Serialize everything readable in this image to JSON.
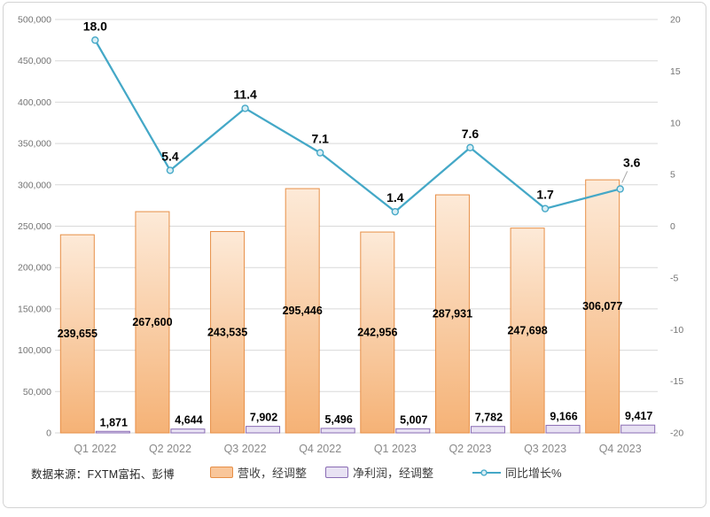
{
  "source_note": "数据来源：FXTM富拓、彭博",
  "colors": {
    "bar_revenue_border": "#E78F47",
    "bar_revenue_gradient_top": "#FDEAD8",
    "bar_revenue_gradient_bottom": "#F5B276",
    "bar_revenue_legend_fill": "#F9C69A",
    "bar_netprofit_fill": "#E8E2F3",
    "bar_netprofit_border": "#8A6CB4",
    "line_growth": "#44A8C7",
    "marker_fill": "#D9EEF5",
    "gridline": "#D9D9D9",
    "axis_text": "#737373",
    "xaxis_text": "#898989",
    "data_label": "#000000",
    "leader_line": "#A6A6A6",
    "frame_border": "#d3d3d3"
  },
  "legend": [
    {
      "label": "营收，经调整",
      "type": "bar",
      "fill": "#F9C69A",
      "border": "#E78F47"
    },
    {
      "label": "净利润，经调整",
      "type": "bar",
      "fill": "#E8E2F3",
      "border": "#8A6CB4"
    },
    {
      "label": "同比增长%",
      "type": "line",
      "stroke": "#44A8C7",
      "marker_fill": "#D9EEF5"
    }
  ],
  "chart_data": {
    "type": "bar",
    "subtype": "combo-bar-line",
    "categories": [
      "Q1 2022",
      "Q2 2022",
      "Q3 2022",
      "Q4 2022",
      "Q1 2023",
      "Q2 2023",
      "Q3 2023",
      "Q4 2023"
    ],
    "series": [
      {
        "name": "营收，经调整",
        "type": "bar",
        "axis": "left",
        "values": [
          239655,
          267600,
          243535,
          295446,
          242956,
          287931,
          247698,
          306077
        ],
        "labels": [
          "239,655",
          "267,600",
          "243,535",
          "295,446",
          "242,956",
          "287,931",
          "247,698",
          "306,077"
        ]
      },
      {
        "name": "净利润，经调整",
        "type": "bar",
        "axis": "left",
        "values": [
          1871,
          4644,
          7902,
          5496,
          5007,
          7782,
          9166,
          9417
        ],
        "labels": [
          "1,871",
          "4,644",
          "7,902",
          "5,496",
          "5,007",
          "7,782",
          "9,166",
          "9,417"
        ]
      },
      {
        "name": "同比增长%",
        "type": "line",
        "axis": "right",
        "values": [
          18.0,
          5.4,
          11.4,
          7.1,
          1.4,
          7.6,
          1.7,
          3.6
        ],
        "labels": [
          "18.0",
          "5.4",
          "11.4",
          "7.1",
          "1.4",
          "7.6",
          "1.7",
          "3.6"
        ]
      }
    ],
    "left_axis": {
      "min": 0,
      "max": 500000,
      "step": 50000,
      "tick_labels": [
        "500,000",
        "450,000",
        "400,000",
        "350,000",
        "300,000",
        "250,000",
        "200,000",
        "150,000",
        "100,000",
        "50,000",
        "0"
      ]
    },
    "right_axis": {
      "min": -20,
      "max": 20,
      "step": 5,
      "tick_labels": [
        "20",
        "15",
        "10",
        "5",
        "0",
        "-5",
        "-10",
        "-15",
        "-20"
      ]
    },
    "grid": true,
    "legend_position": "bottom",
    "title": ""
  }
}
